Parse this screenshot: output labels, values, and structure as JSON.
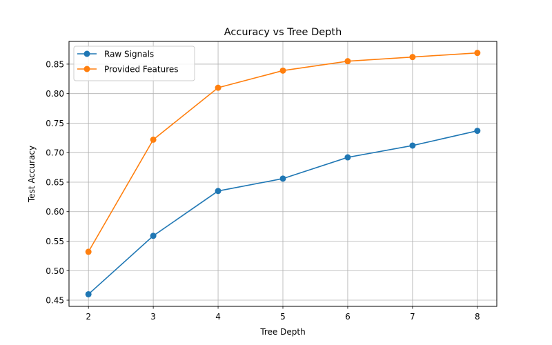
{
  "chart_data": {
    "type": "line",
    "title": "Accuracy vs Tree Depth",
    "xlabel": "Tree Depth",
    "ylabel": "Test Accuracy",
    "x": [
      2,
      3,
      4,
      5,
      6,
      7,
      8
    ],
    "xlim": [
      1.7,
      8.3
    ],
    "ylim": [
      0.4395,
      0.8885
    ],
    "xticks": [
      "2",
      "3",
      "4",
      "5",
      "6",
      "7",
      "8"
    ],
    "yticks": [
      "0.45",
      "0.50",
      "0.55",
      "0.60",
      "0.65",
      "0.70",
      "0.75",
      "0.80",
      "0.85"
    ],
    "grid": true,
    "legend_position": "top-left",
    "series": [
      {
        "name": "Raw Signals",
        "color": "#1f77b4",
        "marker": "circle",
        "values": [
          0.46,
          0.559,
          0.635,
          0.656,
          0.692,
          0.712,
          0.737
        ]
      },
      {
        "name": "Provided Features",
        "color": "#ff7f0e",
        "marker": "circle",
        "values": [
          0.532,
          0.722,
          0.81,
          0.839,
          0.855,
          0.862,
          0.869
        ]
      }
    ]
  }
}
